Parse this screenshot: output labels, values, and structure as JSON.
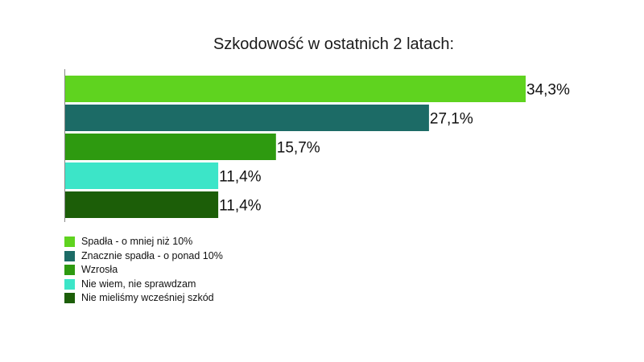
{
  "chart_data": {
    "type": "bar",
    "orientation": "horizontal",
    "title": "Szkodowość w ostatnich 2 latach:",
    "xlim": [
      0,
      35
    ],
    "grid": false,
    "legend_position": "bottom-left",
    "categories": [
      "Spadła - o mniej niż 10%",
      "Znacznie spadła - o ponad 10%",
      "Wzrosła",
      "Nie wiem, nie sprawdzam",
      "Nie mieliśmy wcześniej szkód"
    ],
    "values": [
      34.3,
      27.1,
      15.7,
      11.4,
      11.4
    ],
    "labels": [
      "34,3%",
      "27,1%",
      "15,7%",
      "11,4%",
      "11,4%"
    ],
    "colors": [
      "#5fd31f",
      "#1c6b66",
      "#2e9a10",
      "#3ce5c8",
      "#1c5e08"
    ]
  }
}
